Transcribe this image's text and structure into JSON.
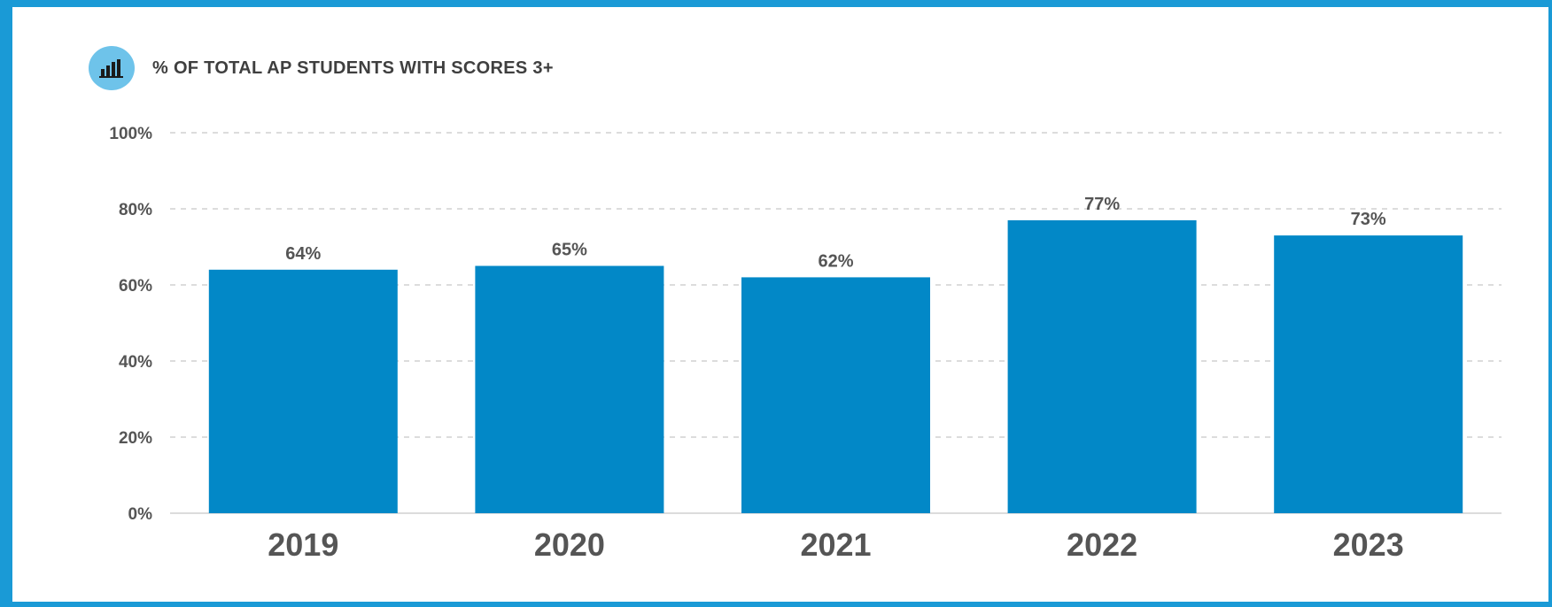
{
  "header": {
    "title": "% OF TOTAL AP STUDENTS WITH SCORES 3+",
    "icon": "bar-chart-icon"
  },
  "colors": {
    "frame": "#1a9ad6",
    "bar": "#0288c7",
    "icon_bg": "#6ec3ea",
    "grid": "#c8c8c8",
    "text": "#555555"
  },
  "chart_data": {
    "type": "bar",
    "title": "% OF TOTAL AP STUDENTS WITH SCORES 3+",
    "categories": [
      "2019",
      "2020",
      "2021",
      "2022",
      "2023"
    ],
    "values": [
      64,
      65,
      62,
      77,
      73
    ],
    "data_labels": [
      "64%",
      "65%",
      "62%",
      "77%",
      "73%"
    ],
    "ylim": [
      0,
      100
    ],
    "yticks": [
      0,
      20,
      40,
      60,
      80,
      100
    ],
    "ytick_labels": [
      "0%",
      "20%",
      "40%",
      "60%",
      "80%",
      "100%"
    ],
    "grid": true,
    "xlabel": "",
    "ylabel": ""
  }
}
